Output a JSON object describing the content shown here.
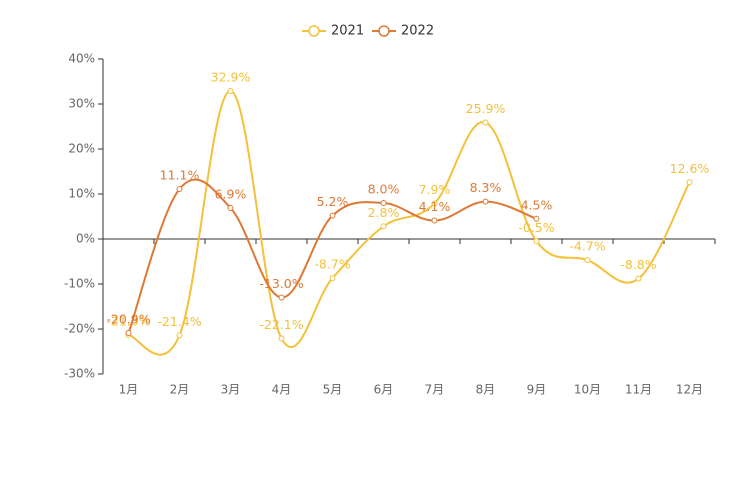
{
  "chart_data": {
    "type": "line",
    "categories": [
      "1月",
      "2月",
      "3月",
      "4月",
      "5月",
      "6月",
      "7月",
      "8月",
      "9月",
      "10月",
      "11月",
      "12月"
    ],
    "series": [
      {
        "name": "2021",
        "color": "#f3c13a",
        "values": [
          -21.3,
          -21.4,
          32.9,
          -22.1,
          -8.7,
          2.8,
          7.9,
          25.9,
          -0.5,
          -4.7,
          -8.8,
          12.6
        ],
        "value_labels": [
          "-21.3%",
          "-21.4%",
          "32.9%",
          "-22.1%",
          "-8.7%",
          "2.8%",
          "7.9%",
          "25.9%",
          "-0.5%",
          "-4.7%",
          "-8.8%",
          "12.6%"
        ]
      },
      {
        "name": "2022",
        "color": "#dd7935",
        "values": [
          -20.9,
          11.1,
          6.9,
          -13.0,
          5.2,
          8.0,
          4.1,
          8.3,
          4.5,
          null,
          null,
          null
        ],
        "value_labels": [
          "-20.9%",
          "11.1%",
          "6.9%",
          "-13.0%",
          "5.2%",
          "8.0%",
          "4.1%",
          "8.3%",
          "4.5%",
          null,
          null,
          null
        ]
      }
    ],
    "ylim": [
      -30,
      40
    ],
    "yticks": [
      {
        "value": -30,
        "label": "-30%"
      },
      {
        "value": -20,
        "label": "-20%"
      },
      {
        "value": -10,
        "label": "-10%"
      },
      {
        "value": 0,
        "label": "0%"
      },
      {
        "value": 10,
        "label": "10%"
      },
      {
        "value": 20,
        "label": "20%"
      },
      {
        "value": 30,
        "label": "30%"
      },
      {
        "value": 40,
        "label": "40%"
      }
    ],
    "smooth": true
  }
}
